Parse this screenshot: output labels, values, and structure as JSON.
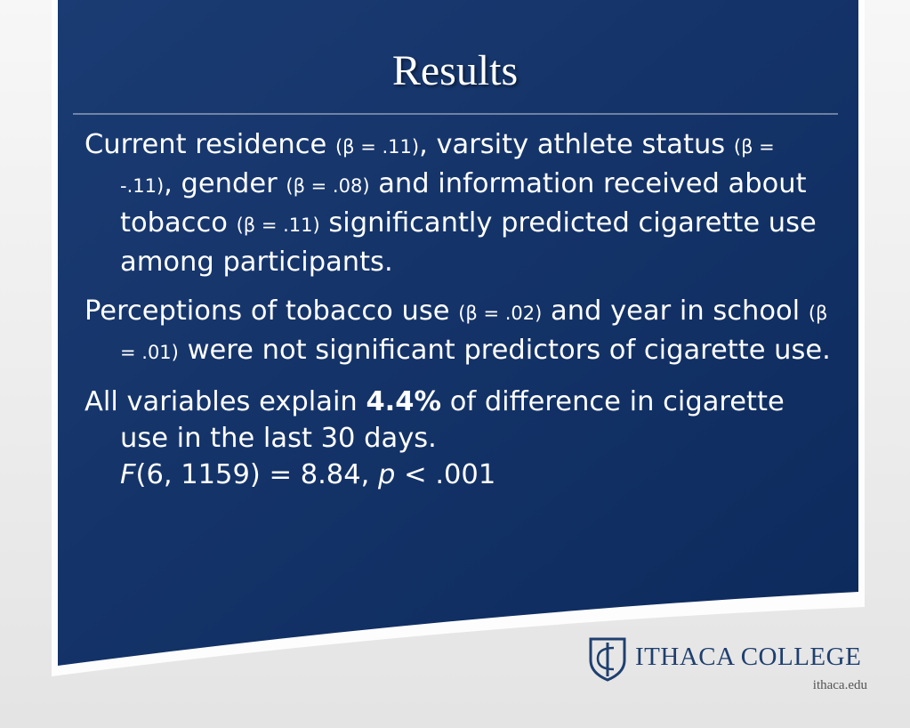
{
  "title": "Results",
  "paragraphs": [
    [
      "Current residence ",
      "(β = .11)",
      ", varsity athlete status ",
      "(β = -.11)",
      ", gender ",
      "(β = .08)",
      " and information received about tobacco ",
      "(β = .11)",
      " significantly predicted cigarette use among participants."
    ],
    [
      "Perceptions of tobacco use ",
      "(β = .02)",
      " and year in school ",
      "(β = .01)",
      " were not significant predictors of cigarette use."
    ],
    [
      "All variables explain ",
      "4.4%",
      " of difference in cigarette use in the last 30 days."
    ]
  ],
  "statistic": [
    "F",
    "(6, 1159) = 8.84, ",
    "p",
    " < .001"
  ],
  "logo": {
    "name": "ITHACA COLLEGE",
    "url": "ithaca.edu"
  }
}
